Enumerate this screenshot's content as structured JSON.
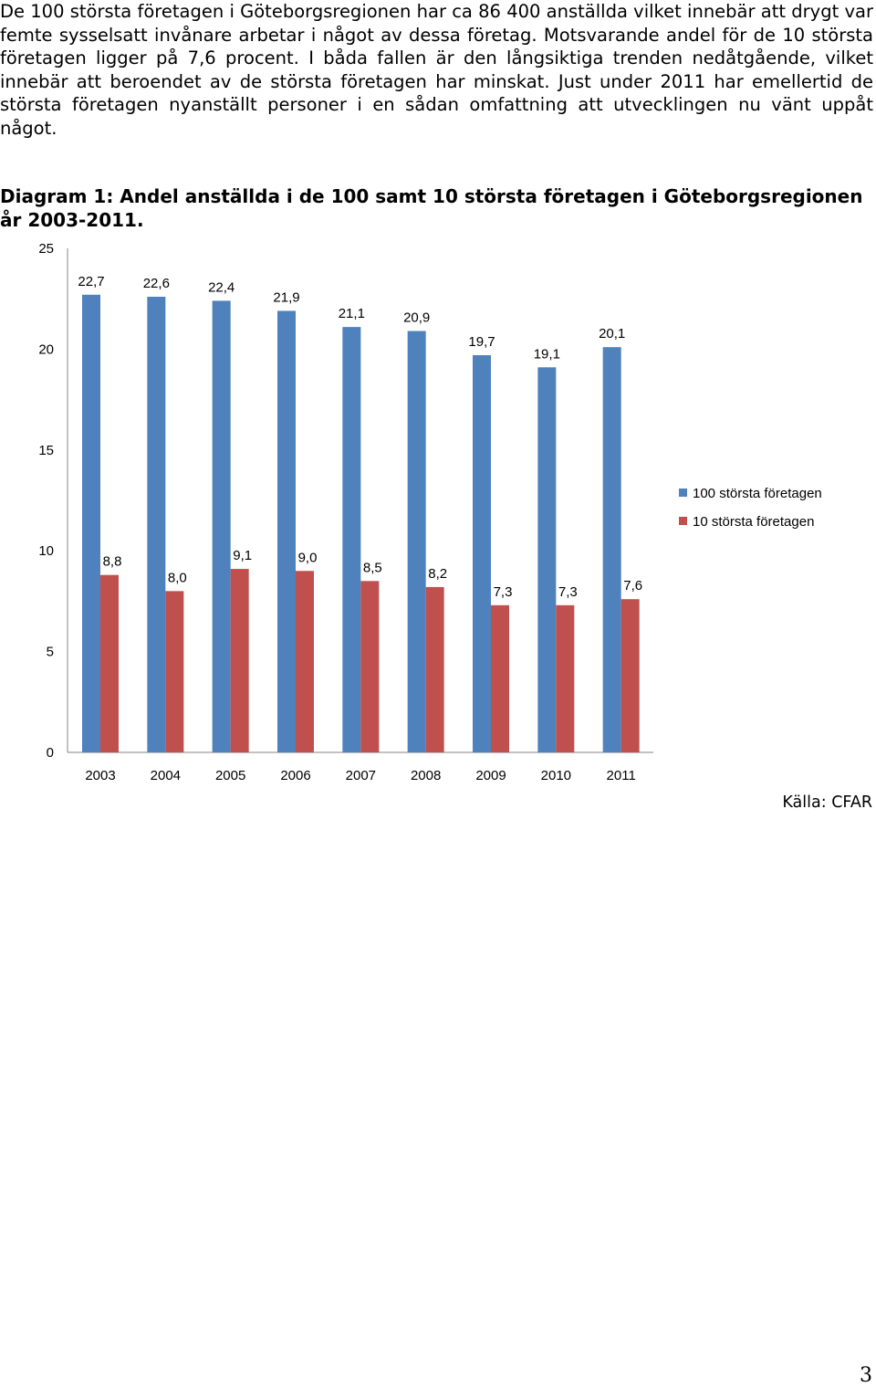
{
  "document": {
    "paragraph": "De 100 största företagen i Göteborgsregionen har ca 86 400 anställda vilket innebär att drygt var femte sysselsatt invånare arbetar i något av dessa företag. Motsvarande andel för de 10 största företagen ligger på 7,6 procent. I båda fallen är den långsiktiga trenden nedåtgående, vilket innebär att beroendet av de största företagen har minskat. Just under 2011 har emellertid de största företagen nyanställt personer i en sådan omfattning att utvecklingen nu vänt uppåt något.",
    "caption": "Diagram 1: Andel anställda i de 100 samt 10 största företagen i Göteborgsregionen år 2003-2011.",
    "source": "Källa: CFAR",
    "page_number": "3"
  },
  "chart_data": {
    "type": "bar",
    "categories": [
      "2003",
      "2004",
      "2005",
      "2006",
      "2007",
      "2008",
      "2009",
      "2010",
      "2011"
    ],
    "series": [
      {
        "name": "100 största företagen",
        "color": "#4f81bd",
        "values": [
          22.7,
          22.6,
          22.4,
          21.9,
          21.1,
          20.9,
          19.7,
          19.1,
          20.1
        ],
        "labels": [
          "22,7",
          "22,6",
          "22,4",
          "21,9",
          "21,1",
          "20,9",
          "19,7",
          "19,1",
          "20,1"
        ]
      },
      {
        "name": "10 största företagen",
        "color": "#c0504d",
        "values": [
          8.8,
          8.0,
          9.1,
          9.0,
          8.5,
          8.2,
          7.3,
          7.3,
          7.6
        ],
        "labels": [
          "8,8",
          "8,0",
          "9,1",
          "9,0",
          "8,5",
          "8,2",
          "7,3",
          "7,3",
          "7,6"
        ]
      }
    ],
    "yticks": [
      "0",
      "5",
      "10",
      "15",
      "20",
      "25"
    ],
    "ylim": [
      0,
      25
    ],
    "grid": false,
    "legend": "right"
  }
}
